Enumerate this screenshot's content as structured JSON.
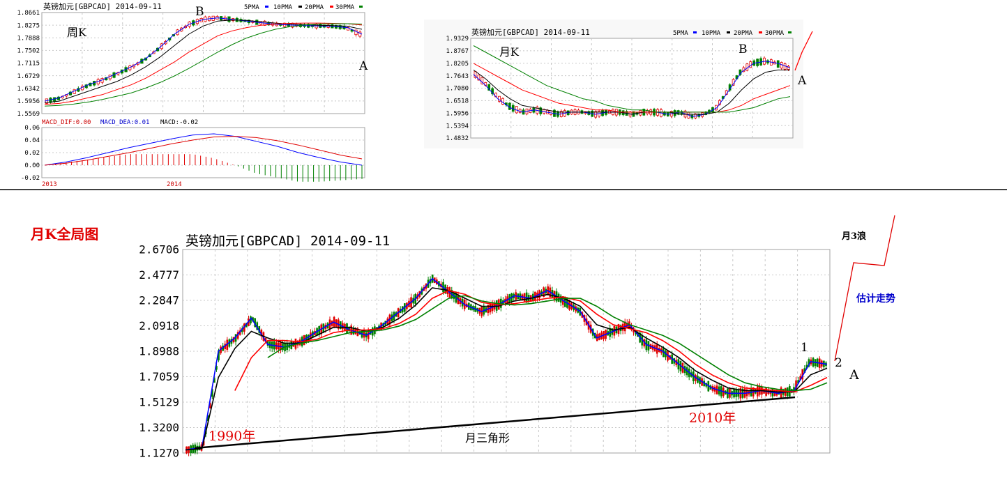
{
  "weekly": {
    "title": "英镑加元[GBPCAD] 2014-09-11",
    "legend": [
      "5PMA",
      "10PMA",
      "20PMA",
      "30PMA"
    ],
    "label": "周K",
    "price_ticks": [
      "1.8661",
      "1.8275",
      "1.7888",
      "1.7502",
      "1.7115",
      "1.6729",
      "1.6342",
      "1.5956",
      "1.5569"
    ],
    "macd_header": {
      "dif": "MACD_DIF:0.00",
      "dea": "MACD_DEA:0.01",
      "macd": "MACD:-0.02"
    },
    "macd_ticks": [
      "0.06",
      "0.04",
      "0.02",
      "0.00",
      "-0.02"
    ],
    "year_labels": [
      "2013",
      "2014"
    ],
    "mark_b": "B",
    "mark_a": "A"
  },
  "monthly_small": {
    "title": "英镑加元[GBPCAD] 2014-09-11",
    "legend": [
      "5PMA",
      "10PMA",
      "20PMA",
      "30PMA"
    ],
    "label": "月K",
    "price_ticks": [
      "1.9329",
      "1.8767",
      "1.8205",
      "1.7643",
      "1.7080",
      "1.6518",
      "1.5956",
      "1.5394",
      "1.4832"
    ],
    "mark_b": "B",
    "mark_a": "A"
  },
  "global": {
    "heading": "月K全局图",
    "title": "英镑加元[GBPCAD] 2014-09-11",
    "price_ticks": [
      "2.6706",
      "2.4777",
      "2.2847",
      "2.0918",
      "1.8988",
      "1.7059",
      "1.5129",
      "1.3200",
      "1.1270"
    ],
    "label_1990": "1990年",
    "label_2010": "2010年",
    "triangle_label": "月三角形",
    "wave_label": "月3浪",
    "forecast_label": "估计走势",
    "mark_1": "1",
    "mark_2": "2",
    "mark_a": "A"
  },
  "chart_data": [
    {
      "type": "line",
      "title": "英镑加元[GBPCAD] 2014-09-11",
      "series": [
        {
          "name": "5PMA",
          "values": [
            1.595,
            1.605,
            1.625,
            1.645,
            1.66,
            1.68,
            1.7,
            1.725,
            1.76,
            1.8,
            1.83,
            1.845,
            1.85,
            1.845,
            1.84,
            1.835,
            1.83,
            1.828,
            1.826,
            1.825,
            1.824,
            1.82,
            1.8
          ]
        },
        {
          "name": "10PMA",
          "values": [
            1.59,
            1.595,
            1.61,
            1.625,
            1.64,
            1.655,
            1.675,
            1.7,
            1.73,
            1.765,
            1.8,
            1.825,
            1.84,
            1.843,
            1.842,
            1.838,
            1.834,
            1.831,
            1.829,
            1.827,
            1.826,
            1.824,
            1.815
          ]
        },
        {
          "name": "20PMA",
          "values": [
            1.585,
            1.588,
            1.595,
            1.605,
            1.615,
            1.63,
            1.645,
            1.665,
            1.69,
            1.715,
            1.745,
            1.77,
            1.795,
            1.81,
            1.82,
            1.827,
            1.831,
            1.833,
            1.834,
            1.834,
            1.833,
            1.832,
            1.828
          ]
        },
        {
          "name": "30PMA",
          "values": [
            1.58,
            1.582,
            1.586,
            1.592,
            1.6,
            1.61,
            1.62,
            1.635,
            1.652,
            1.672,
            1.695,
            1.72,
            1.745,
            1.768,
            1.788,
            1.803,
            1.815,
            1.823,
            1.828,
            1.831,
            1.832,
            1.832,
            1.831
          ]
        }
      ],
      "ylim": [
        1.5569,
        1.8661
      ]
    },
    {
      "type": "line",
      "title": "MACD",
      "series": [
        {
          "name": "MACD_DIF",
          "values": [
            0.0,
            0.005,
            0.012,
            0.02,
            0.028,
            0.035,
            0.042,
            0.048,
            0.05,
            0.046,
            0.038,
            0.03,
            0.02,
            0.012,
            0.005,
            0.0
          ]
        },
        {
          "name": "MACD_DEA",
          "values": [
            0.0,
            0.003,
            0.008,
            0.014,
            0.02,
            0.027,
            0.034,
            0.04,
            0.045,
            0.046,
            0.044,
            0.039,
            0.032,
            0.024,
            0.016,
            0.01
          ]
        }
      ],
      "ylim": [
        -0.02,
        0.06
      ]
    },
    {
      "type": "line",
      "title": "英镑加元[GBPCAD] 2014-09-11",
      "series": [
        {
          "name": "5PMA",
          "values": [
            1.77,
            1.72,
            1.66,
            1.62,
            1.6,
            1.61,
            1.6,
            1.59,
            1.6,
            1.6,
            1.59,
            1.6,
            1.6,
            1.59,
            1.6,
            1.6,
            1.59,
            1.6,
            1.58,
            1.59,
            1.62,
            1.7,
            1.78,
            1.82,
            1.83,
            1.82,
            1.8
          ]
        },
        {
          "name": "10PMA",
          "values": [
            1.79,
            1.75,
            1.7,
            1.66,
            1.63,
            1.62,
            1.61,
            1.6,
            1.6,
            1.6,
            1.6,
            1.6,
            1.6,
            1.59,
            1.6,
            1.6,
            1.6,
            1.59,
            1.59,
            1.59,
            1.6,
            1.64,
            1.7,
            1.75,
            1.78,
            1.79,
            1.79
          ]
        },
        {
          "name": "20PMA",
          "values": [
            1.82,
            1.79,
            1.76,
            1.73,
            1.7,
            1.68,
            1.66,
            1.64,
            1.63,
            1.62,
            1.61,
            1.61,
            1.6,
            1.6,
            1.6,
            1.6,
            1.6,
            1.6,
            1.6,
            1.6,
            1.6,
            1.61,
            1.63,
            1.66,
            1.68,
            1.7,
            1.72
          ]
        },
        {
          "name": "30PMA",
          "values": [
            1.9,
            1.87,
            1.84,
            1.81,
            1.78,
            1.75,
            1.72,
            1.7,
            1.68,
            1.66,
            1.65,
            1.63,
            1.62,
            1.61,
            1.61,
            1.6,
            1.6,
            1.6,
            1.6,
            1.6,
            1.6,
            1.6,
            1.61,
            1.62,
            1.64,
            1.66,
            1.67
          ]
        }
      ],
      "ylim": [
        1.4832,
        1.9329
      ]
    },
    {
      "type": "line",
      "title": "英镑加元[GBPCAD] 2014-09-11",
      "series": [
        {
          "name": "5PMA",
          "values": [
            1.15,
            1.17,
            1.9,
            2.0,
            2.15,
            1.95,
            1.93,
            1.97,
            2.05,
            2.12,
            2.06,
            2.02,
            2.1,
            2.2,
            2.3,
            2.45,
            2.35,
            2.25,
            2.2,
            2.25,
            2.32,
            2.3,
            2.36,
            2.28,
            2.2,
            2.0,
            2.05,
            2.1,
            1.95,
            1.9,
            1.8,
            1.7,
            1.62,
            1.58,
            1.58,
            1.6,
            1.58,
            1.6,
            1.82,
            1.8
          ]
        },
        {
          "name": "10PMA",
          "values": [
            1.15,
            1.16,
            1.7,
            1.92,
            2.05,
            2.0,
            1.96,
            1.96,
            2.02,
            2.08,
            2.08,
            2.05,
            2.08,
            2.15,
            2.25,
            2.38,
            2.36,
            2.3,
            2.24,
            2.24,
            2.28,
            2.3,
            2.33,
            2.3,
            2.24,
            2.1,
            2.06,
            2.08,
            2.0,
            1.93,
            1.85,
            1.75,
            1.68,
            1.62,
            1.6,
            1.6,
            1.59,
            1.59,
            1.72,
            1.77
          ]
        },
        {
          "name": "20PMA",
          "values": [
            null,
            null,
            null,
            1.6,
            1.85,
            1.98,
            1.98,
            1.97,
            1.99,
            2.04,
            2.06,
            2.06,
            2.07,
            2.11,
            2.18,
            2.3,
            2.36,
            2.33,
            2.27,
            2.25,
            2.26,
            2.28,
            2.3,
            2.31,
            2.28,
            2.18,
            2.1,
            2.07,
            2.04,
            1.98,
            1.9,
            1.8,
            1.72,
            1.66,
            1.62,
            1.61,
            1.6,
            1.59,
            1.64,
            1.7
          ]
        },
        {
          "name": "30PMA",
          "values": [
            null,
            null,
            null,
            null,
            null,
            1.85,
            1.93,
            1.96,
            1.98,
            2.01,
            2.04,
            2.05,
            2.06,
            2.09,
            2.14,
            2.22,
            2.3,
            2.32,
            2.28,
            2.26,
            2.25,
            2.26,
            2.28,
            2.3,
            2.3,
            2.24,
            2.16,
            2.1,
            2.06,
            2.02,
            1.96,
            1.88,
            1.8,
            1.72,
            1.66,
            1.63,
            1.61,
            1.6,
            1.61,
            1.66
          ]
        }
      ],
      "ylim": [
        1.127,
        2.6706
      ]
    }
  ]
}
